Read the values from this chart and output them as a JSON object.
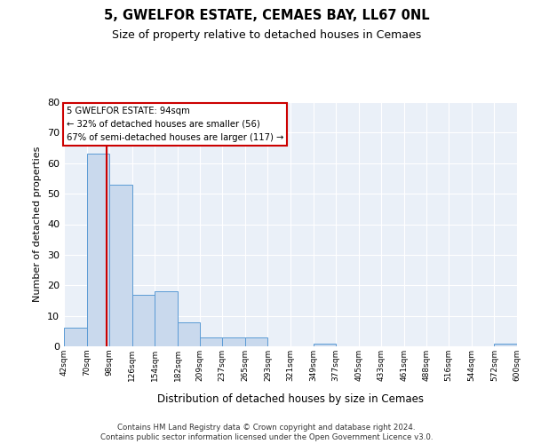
{
  "title": "5, GWELFOR ESTATE, CEMAES BAY, LL67 0NL",
  "subtitle": "Size of property relative to detached houses in Cemaes",
  "xlabel": "Distribution of detached houses by size in Cemaes",
  "ylabel": "Number of detached properties",
  "bin_labels": [
    "42sqm",
    "70sqm",
    "98sqm",
    "126sqm",
    "154sqm",
    "182sqm",
    "209sqm",
    "237sqm",
    "265sqm",
    "293sqm",
    "321sqm",
    "349sqm",
    "377sqm",
    "405sqm",
    "433sqm",
    "461sqm",
    "488sqm",
    "516sqm",
    "544sqm",
    "572sqm",
    "600sqm"
  ],
  "bar_values": [
    6,
    63,
    53,
    17,
    18,
    8,
    3,
    3,
    3,
    0,
    0,
    1,
    0,
    0,
    0,
    0,
    0,
    0,
    0,
    1
  ],
  "bar_color": "#c9d9ed",
  "bar_edge_color": "#5b9bd5",
  "ylim": [
    0,
    80
  ],
  "yticks": [
    0,
    10,
    20,
    30,
    40,
    50,
    60,
    70,
    80
  ],
  "property_line_x": 94,
  "property_line_label": "5 GWELFOR ESTATE: 94sqm",
  "annotation_line1": "← 32% of detached houses are smaller (56)",
  "annotation_line2": "67% of semi-detached houses are larger (117) →",
  "annotation_box_color": "#ffffff",
  "annotation_box_edge": "#cc0000",
  "footer_line1": "Contains HM Land Registry data © Crown copyright and database right 2024.",
  "footer_line2": "Contains public sector information licensed under the Open Government Licence v3.0.",
  "bin_edges": [
    42,
    70,
    98,
    126,
    154,
    182,
    209,
    237,
    265,
    293,
    321,
    349,
    377,
    405,
    433,
    461,
    488,
    516,
    544,
    572,
    600
  ]
}
